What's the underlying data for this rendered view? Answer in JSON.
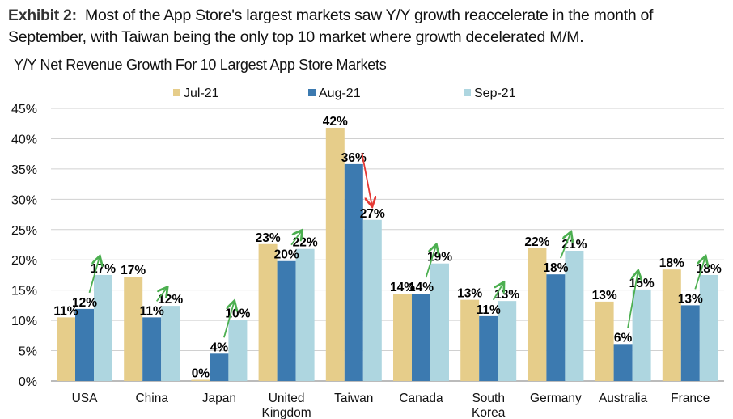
{
  "header": {
    "exhibit_label": "Exhibit 2:",
    "text": "Most of the App Store's largest markets saw Y/Y growth reaccelerate in the month of September, with Taiwan being the only top 10 market where growth decelerated M/M."
  },
  "chart_data": {
    "type": "bar",
    "title": "Y/Y Net Revenue Growth For 10 Largest App Store Markets",
    "categories": [
      "USA",
      "China",
      "Japan",
      "United Kingdom",
      "Taiwan",
      "Canada",
      "South Korea",
      "Germany",
      "Australia",
      "France"
    ],
    "category_lines": [
      [
        "USA"
      ],
      [
        "China"
      ],
      [
        "Japan"
      ],
      [
        "United",
        "Kingdom"
      ],
      [
        "Taiwan"
      ],
      [
        "Canada"
      ],
      [
        "South",
        "Korea"
      ],
      [
        "Germany"
      ],
      [
        "Australia"
      ],
      [
        "France"
      ]
    ],
    "series": [
      {
        "name": "Jul-21",
        "color": "#E6CD8A",
        "values": [
          10.5,
          17.2,
          0.2,
          22.6,
          41.8,
          14.4,
          13.4,
          21.9,
          13.1,
          18.4
        ],
        "labels": [
          "11%",
          "17%",
          "0%",
          "23%",
          "42%",
          "14%",
          "13%",
          "22%",
          "13%",
          "18%"
        ]
      },
      {
        "name": "Aug-21",
        "color": "#3C7AB0",
        "values": [
          11.9,
          10.5,
          4.5,
          19.8,
          35.8,
          14.4,
          10.7,
          17.6,
          6.1,
          12.5
        ],
        "labels": [
          "12%",
          "11%",
          "4%",
          "20%",
          "36%",
          "14%",
          "11%",
          "18%",
          "6%",
          "13%"
        ]
      },
      {
        "name": "Sep-21",
        "color": "#AED6E0",
        "values": [
          17.5,
          12.4,
          10.1,
          21.8,
          26.6,
          19.4,
          13.2,
          21.5,
          15.1,
          17.5
        ],
        "labels": [
          "17%",
          "12%",
          "10%",
          "22%",
          "27%",
          "19%",
          "13%",
          "21%",
          "15%",
          "18%"
        ]
      }
    ],
    "annotations": {
      "arrow_up_color": "#4CAF50",
      "arrow_down_color": "#E53935",
      "arrow_directions": [
        "up",
        "up",
        "up",
        "up",
        "down",
        "up",
        "up",
        "up",
        "up",
        "up"
      ]
    },
    "ylim": [
      0,
      45
    ],
    "yticks": [
      "0%",
      "5%",
      "10%",
      "15%",
      "20%",
      "25%",
      "30%",
      "35%",
      "40%",
      "45%"
    ],
    "ytick_values": [
      0,
      5,
      10,
      15,
      20,
      25,
      30,
      35,
      40,
      45
    ],
    "grid": true,
    "legend_position": "top"
  }
}
